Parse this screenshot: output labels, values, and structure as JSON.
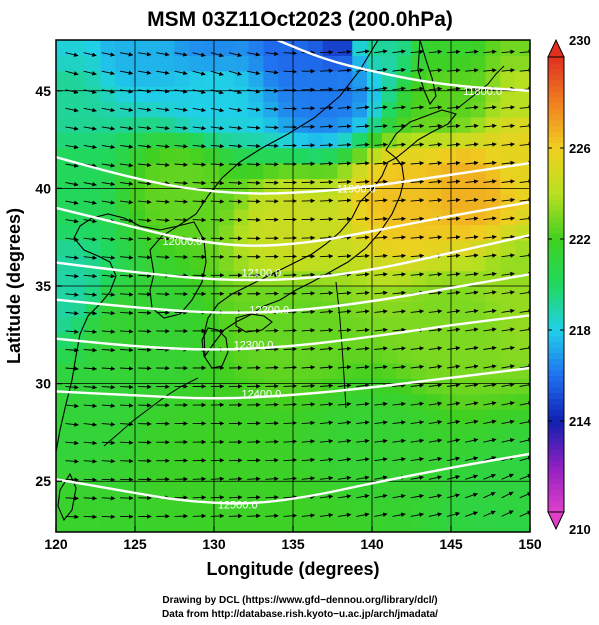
{
  "chart_data": {
    "type": "heatmap",
    "title": "MSM 03Z11Oct2023 (200.0hPa)",
    "xlabel": "Longitude (degrees)",
    "ylabel": "Latitude  (degrees)",
    "xlim": [
      120,
      150
    ],
    "ylim": [
      22.4,
      47.6
    ],
    "x_ticks": [
      "120",
      "125",
      "130",
      "135",
      "140",
      "145",
      "150"
    ],
    "y_ticks": [
      "25",
      "30",
      "35",
      "40",
      "45"
    ],
    "grid": true,
    "colorbar": {
      "min": 210,
      "max": 230,
      "tick_values": [
        230,
        226,
        222,
        218,
        214,
        210
      ],
      "tick_labels": [
        "230",
        "226",
        "222",
        "218",
        "214",
        "210"
      ],
      "extend": "both",
      "stops": [
        {
          "value": 210,
          "color": "#e040c8"
        },
        {
          "value": 212,
          "color": "#9020c0"
        },
        {
          "value": 214,
          "color": "#1020b0"
        },
        {
          "value": 216,
          "color": "#2070f0"
        },
        {
          "value": 218,
          "color": "#20d0e8"
        },
        {
          "value": 220,
          "color": "#20d860"
        },
        {
          "value": 222,
          "color": "#40d020"
        },
        {
          "value": 224,
          "color": "#b8e020"
        },
        {
          "value": 226,
          "color": "#f0d020"
        },
        {
          "value": 228,
          "color": "#f08020"
        },
        {
          "value": 230,
          "color": "#e03020"
        }
      ]
    },
    "field_samples": [
      {
        "lon": 120,
        "lat": 47.6,
        "value": 218.2
      },
      {
        "lon": 125,
        "lat": 47.6,
        "value": 217.4
      },
      {
        "lon": 130,
        "lat": 47.6,
        "value": 216.6
      },
      {
        "lon": 135,
        "lat": 47.6,
        "value": 215.8
      },
      {
        "lon": 138,
        "lat": 47.6,
        "value": 214.8
      },
      {
        "lon": 140,
        "lat": 47.6,
        "value": 219.2
      },
      {
        "lon": 145,
        "lat": 47.6,
        "value": 221.6
      },
      {
        "lon": 150,
        "lat": 47.6,
        "value": 222.8
      },
      {
        "lon": 120,
        "lat": 45,
        "value": 219.2
      },
      {
        "lon": 130,
        "lat": 45,
        "value": 218.0
      },
      {
        "lon": 137,
        "lat": 45,
        "value": 216.2
      },
      {
        "lon": 145,
        "lat": 45,
        "value": 222.4
      },
      {
        "lon": 150,
        "lat": 45,
        "value": 224.0
      },
      {
        "lon": 150,
        "lat": 42,
        "value": 225.6
      },
      {
        "lon": 146,
        "lat": 40,
        "value": 226.8
      },
      {
        "lon": 142,
        "lat": 39.5,
        "value": 226.4
      },
      {
        "lon": 135,
        "lat": 38,
        "value": 224.6
      },
      {
        "lon": 128,
        "lat": 40,
        "value": 222.6
      },
      {
        "lon": 120,
        "lat": 40,
        "value": 220.2
      },
      {
        "lon": 120,
        "lat": 35,
        "value": 219.0
      },
      {
        "lon": 125,
        "lat": 33,
        "value": 221.4
      },
      {
        "lon": 135,
        "lat": 33,
        "value": 222.6
      },
      {
        "lon": 145,
        "lat": 33,
        "value": 223.0
      },
      {
        "lon": 150,
        "lat": 35,
        "value": 223.4
      },
      {
        "lon": 120,
        "lat": 28,
        "value": 221.2
      },
      {
        "lon": 130,
        "lat": 26,
        "value": 221.8
      },
      {
        "lon": 140,
        "lat": 27,
        "value": 221.4
      },
      {
        "lon": 150,
        "lat": 24,
        "value": 221.0
      },
      {
        "lon": 120,
        "lat": 22.4,
        "value": 221.6
      },
      {
        "lon": 135,
        "lat": 22.4,
        "value": 221.8
      },
      {
        "lon": 150,
        "lat": 22.4,
        "value": 220.8
      }
    ],
    "contours": [
      {
        "level": 11800,
        "label": "11800.0",
        "label_at": [
          147.0,
          45.0
        ],
        "points": [
          [
            134,
            47.6
          ],
          [
            137,
            46.6
          ],
          [
            140,
            46.0
          ],
          [
            143,
            45.5
          ],
          [
            146,
            45.2
          ],
          [
            150,
            45.0
          ]
        ]
      },
      {
        "level": 11900,
        "label": "11900.0",
        "label_at": [
          139.0,
          40.0
        ],
        "points": [
          [
            120,
            41.6
          ],
          [
            124,
            40.7
          ],
          [
            128,
            40.0
          ],
          [
            132,
            39.7
          ],
          [
            136,
            39.8
          ],
          [
            140,
            40.1
          ],
          [
            145,
            40.7
          ],
          [
            150,
            41.3
          ]
        ]
      },
      {
        "level": 12000,
        "label": "12000.0",
        "label_at": [
          128.0,
          37.3
        ],
        "points": [
          [
            120,
            39.0
          ],
          [
            124,
            38.2
          ],
          [
            128,
            37.4
          ],
          [
            132,
            37.0
          ],
          [
            136,
            37.2
          ],
          [
            140,
            37.8
          ],
          [
            145,
            38.6
          ],
          [
            150,
            39.3
          ]
        ]
      },
      {
        "level": 12100,
        "label": "12100.0",
        "label_at": [
          133.0,
          35.7
        ],
        "points": [
          [
            120,
            36.2
          ],
          [
            125,
            35.7
          ],
          [
            130,
            35.3
          ],
          [
            135,
            35.3
          ],
          [
            140,
            35.8
          ],
          [
            145,
            36.7
          ],
          [
            150,
            37.6
          ]
        ]
      },
      {
        "level": 12200,
        "label": "12200.0",
        "label_at": [
          133.5,
          33.8
        ],
        "points": [
          [
            120,
            34.3
          ],
          [
            125,
            33.9
          ],
          [
            130,
            33.6
          ],
          [
            135,
            33.7
          ],
          [
            140,
            34.2
          ],
          [
            145,
            34.9
          ],
          [
            150,
            35.6
          ]
        ]
      },
      {
        "level": 12300,
        "label": "12300.0",
        "label_at": [
          132.5,
          32.0
        ],
        "points": [
          [
            120,
            32.3
          ],
          [
            125,
            31.9
          ],
          [
            130,
            31.7
          ],
          [
            135,
            31.9
          ],
          [
            140,
            32.4
          ],
          [
            145,
            33.0
          ],
          [
            150,
            33.5
          ]
        ]
      },
      {
        "level": 12400,
        "label": "12400.0",
        "label_at": [
          133.0,
          29.5
        ],
        "points": [
          [
            120,
            29.6
          ],
          [
            125,
            29.4
          ],
          [
            130,
            29.2
          ],
          [
            135,
            29.4
          ],
          [
            140,
            29.8
          ],
          [
            145,
            30.3
          ],
          [
            150,
            30.8
          ]
        ]
      },
      {
        "level": 12500,
        "label": "12500.0",
        "label_at": [
          131.5,
          23.8
        ],
        "points": [
          [
            120,
            25.1
          ],
          [
            125,
            24.4
          ],
          [
            128,
            24.0
          ],
          [
            132,
            23.8
          ],
          [
            136,
            24.2
          ],
          [
            140,
            24.9
          ],
          [
            145,
            25.7
          ],
          [
            150,
            26.4
          ]
        ]
      }
    ],
    "wind_field": {
      "description_unit": "streamline vectors",
      "dominant_direction_deg": 90,
      "sample_vectors": [
        {
          "lon": 121,
          "lat": 46,
          "u": 1.0,
          "v": -0.25
        },
        {
          "lon": 130,
          "lat": 46,
          "u": 1.0,
          "v": -0.3
        },
        {
          "lon": 140,
          "lat": 46,
          "u": 1.0,
          "v": 0.15
        },
        {
          "lon": 148,
          "lat": 46,
          "u": 1.0,
          "v": 0.1
        },
        {
          "lon": 121,
          "lat": 40,
          "u": 1.0,
          "v": -0.2
        },
        {
          "lon": 130,
          "lat": 40,
          "u": 1.0,
          "v": -0.05
        },
        {
          "lon": 140,
          "lat": 40,
          "u": 1.0,
          "v": 0.08
        },
        {
          "lon": 148,
          "lat": 40,
          "u": 1.0,
          "v": 0.12
        },
        {
          "lon": 121,
          "lat": 34,
          "u": 1.0,
          "v": -0.1
        },
        {
          "lon": 130,
          "lat": 34,
          "u": 1.0,
          "v": 0.0
        },
        {
          "lon": 140,
          "lat": 34,
          "u": 1.0,
          "v": 0.1
        },
        {
          "lon": 148,
          "lat": 34,
          "u": 1.0,
          "v": 0.15
        },
        {
          "lon": 121,
          "lat": 28,
          "u": 1.0,
          "v": -0.1
        },
        {
          "lon": 130,
          "lat": 28,
          "u": 1.0,
          "v": 0.02
        },
        {
          "lon": 140,
          "lat": 28,
          "u": 1.0,
          "v": 0.12
        },
        {
          "lon": 148,
          "lat": 28,
          "u": 1.0,
          "v": 0.2
        },
        {
          "lon": 121,
          "lat": 24,
          "u": 1.0,
          "v": -0.05
        },
        {
          "lon": 130,
          "lat": 24,
          "u": 1.0,
          "v": 0.05
        },
        {
          "lon": 140,
          "lat": 24,
          "u": 1.0,
          "v": 0.2
        },
        {
          "lon": 148,
          "lat": 24,
          "u": 0.9,
          "v": 0.45
        }
      ]
    },
    "credits": [
      "Drawing by DCL (https://www.gfd−dennou.org/library/dcl/)",
      "Data from http://database.rish.kyoto−u.ac.jp/arch/jmadata/"
    ]
  }
}
